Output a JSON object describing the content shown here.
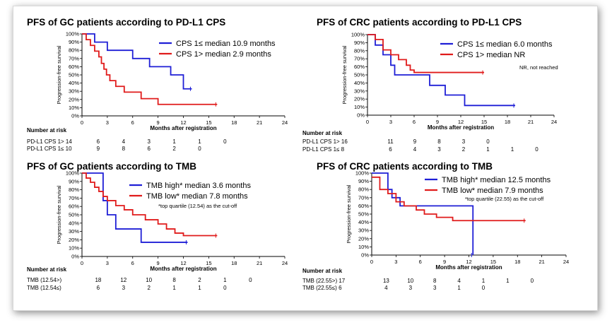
{
  "chart_data": [
    {
      "type": "line",
      "title": "PFS of GC patients according to PD-L1 CPS",
      "xlabel": "Months after registration",
      "ylabel": "Progression-free survival",
      "xlim": [
        0,
        24
      ],
      "ylim": [
        0,
        100
      ],
      "x_ticks": [
        "0",
        "3",
        "6",
        "9",
        "12",
        "15",
        "18",
        "21",
        "24"
      ],
      "y_ticks": [
        "0%",
        "10%",
        "20%",
        "30%",
        "40%",
        "50%",
        "60%",
        "70%",
        "80%",
        "90%",
        "100%"
      ],
      "legend": [
        "CPS 1≤ median 10.9 months",
        "CPS 1> median 2.9 months"
      ],
      "note": "",
      "series": [
        {
          "name": "CPS 1≤ median 10.9 months",
          "color": "#1f1fd6",
          "x": [
            0,
            1.5,
            3,
            6,
            8,
            10.5,
            12,
            13
          ],
          "y": [
            100,
            90,
            80,
            70,
            60,
            50,
            33,
            33
          ]
        },
        {
          "name": "CPS 1> median 2.9 months",
          "color": "#e01b1b",
          "x": [
            0,
            0.5,
            1,
            1.5,
            2,
            2.3,
            2.6,
            2.9,
            3.3,
            4,
            5,
            7,
            9,
            12,
            16
          ],
          "y": [
            100,
            93,
            86,
            79,
            72,
            64,
            57,
            50,
            43,
            36,
            29,
            21,
            14,
            14,
            14
          ]
        }
      ],
      "risk_header": "Number at risk",
      "risk_rows": [
        {
          "label": "PD-L1 CPS 1> 14",
          "values": [
            "6",
            "4",
            "3",
            "1",
            "1",
            "0"
          ]
        },
        {
          "label": "PD-L1 CPS 1≤ 10",
          "values": [
            "9",
            "8",
            "6",
            "2",
            "0"
          ]
        }
      ]
    },
    {
      "type": "line",
      "title": "PFS of CRC patients according to PD-L1 CPS",
      "xlabel": "Months after registration",
      "ylabel": "Progression-free survival",
      "xlim": [
        0,
        24
      ],
      "ylim": [
        0,
        100
      ],
      "x_ticks": [
        "0",
        "3",
        "6",
        "9",
        "12",
        "15",
        "18",
        "21",
        "24"
      ],
      "y_ticks": [
        "0%",
        "10%",
        "20%",
        "30%",
        "40%",
        "50%",
        "60%",
        "70%",
        "80%",
        "90%",
        "100%"
      ],
      "legend": [
        "CPS 1≤ median 6.0 months",
        "CPS 1> median NR"
      ],
      "note": "NR, not reached",
      "series": [
        {
          "name": "CPS 1≤ median 6.0 months",
          "color": "#1f1fd6",
          "x": [
            0,
            1,
            2,
            3,
            3.5,
            4,
            6,
            8,
            10,
            12.5,
            19
          ],
          "y": [
            100,
            87,
            75,
            62,
            50,
            50,
            50,
            37,
            25,
            12,
            12
          ]
        },
        {
          "name": "CPS 1> median NR",
          "color": "#e01b1b",
          "x": [
            0,
            1,
            2,
            3,
            4,
            5,
            5.5,
            6,
            8,
            15
          ],
          "y": [
            100,
            94,
            81,
            75,
            69,
            62,
            56,
            53,
            53,
            53
          ]
        }
      ],
      "risk_header": "Number at risk",
      "risk_rows": [
        {
          "label": "PD-L1 CPS 1> 16",
          "values": [
            "11",
            "9",
            "8",
            "3",
            "0"
          ]
        },
        {
          "label": "PD-L1 CPS 1≤ 8",
          "values": [
            "6",
            "4",
            "3",
            "2",
            "1",
            "1",
            "0"
          ]
        }
      ]
    },
    {
      "type": "line",
      "title": "PFS of GC patients according to TMB",
      "xlabel": "Months after registration",
      "ylabel": "Progression-free survival",
      "xlim": [
        0,
        24
      ],
      "ylim": [
        0,
        100
      ],
      "x_ticks": [
        "0",
        "3",
        "6",
        "9",
        "12",
        "15",
        "18",
        "21",
        "24"
      ],
      "y_ticks": [
        "0%",
        "10%",
        "20%",
        "30%",
        "40%",
        "50%",
        "60%",
        "70%",
        "80%",
        "90%",
        "100%"
      ],
      "legend": [
        "TMB high* median 3.6 months",
        "TMB low*  median 7.8 months"
      ],
      "note": "*top quartile (12.54) as the cut-off",
      "series": [
        {
          "name": "TMB high* median 3.6 months",
          "color": "#1f1fd6",
          "x": [
            0,
            2.5,
            3,
            4,
            7,
            12.5
          ],
          "y": [
            100,
            67,
            50,
            33,
            17,
            17
          ]
        },
        {
          "name": "TMB low*  median 7.8 months",
          "color": "#e01b1b",
          "x": [
            0,
            0.5,
            1,
            1.5,
            2,
            2.5,
            3,
            4,
            5,
            6,
            7.5,
            9,
            10,
            11,
            12,
            16
          ],
          "y": [
            100,
            94,
            89,
            83,
            78,
            72,
            67,
            61,
            56,
            50,
            44,
            39,
            33,
            28,
            25,
            25
          ]
        }
      ],
      "risk_header": "Number at risk",
      "risk_rows": [
        {
          "label": "TMB (12.54>)",
          "values": [
            "18",
            "12",
            "10",
            "8",
            "2",
            "1",
            "0"
          ]
        },
        {
          "label": "TMB (12.54≤)",
          "values": [
            "6",
            "3",
            "2",
            "1",
            "1",
            "0"
          ]
        }
      ]
    },
    {
      "type": "line",
      "title": "PFS of CRC patients according to TMB",
      "xlabel": "Months after registration",
      "ylabel": "Progression-free survival",
      "xlim": [
        0,
        24
      ],
      "ylim": [
        0,
        100
      ],
      "x_ticks": [
        "0",
        "3",
        "6",
        "9",
        "12",
        "15",
        "18",
        "21",
        "24"
      ],
      "y_ticks": [
        "0%",
        "10%",
        "20%",
        "30%",
        "40%",
        "50%",
        "60%",
        "70%",
        "80%",
        "90%",
        "100%"
      ],
      "legend": [
        "TMB high* median 12.5 months",
        "TMB low*  median 7.9 months"
      ],
      "note": "*top quartile (22.55) as the cut-off",
      "series": [
        {
          "name": "TMB high* median 12.5 months",
          "color": "#1f1fd6",
          "x": [
            0,
            2,
            2.5,
            3.5,
            11,
            12.5
          ],
          "y": [
            100,
            80,
            70,
            60,
            60,
            0
          ]
        },
        {
          "name": "TMB low*  median 7.9 months",
          "color": "#e01b1b",
          "x": [
            0,
            1,
            2,
            3,
            4,
            5.5,
            6.5,
            8,
            10,
            19
          ],
          "y": [
            95,
            80,
            75,
            65,
            60,
            55,
            50,
            46,
            42,
            42
          ]
        }
      ],
      "risk_header": "Number at risk",
      "risk_rows": [
        {
          "label": "TMB (22.55>) 17",
          "values": [
            "13",
            "10",
            "8",
            "4",
            "1",
            "1",
            "0"
          ]
        },
        {
          "label": "TMB (22.55≤) 6",
          "values": [
            "4",
            "3",
            "3",
            "1",
            "0"
          ]
        }
      ]
    }
  ]
}
